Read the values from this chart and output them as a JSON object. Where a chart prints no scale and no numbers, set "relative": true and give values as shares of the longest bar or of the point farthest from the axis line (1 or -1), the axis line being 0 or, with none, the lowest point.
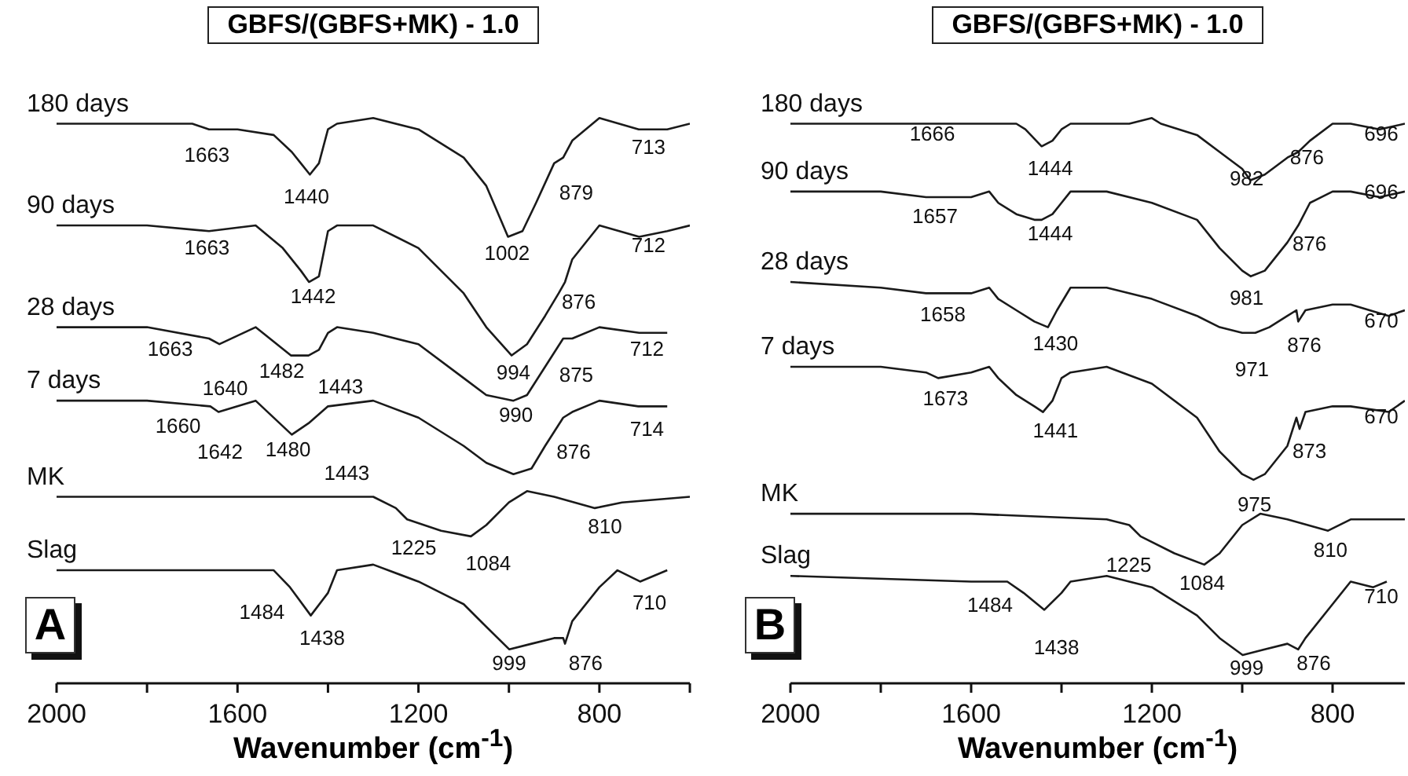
{
  "chart_data": [
    {
      "type": "line",
      "relative": true,
      "title": "GBFS/(GBFS+MK) - 1.0",
      "xlabel": "Wavenumber (cm$^{-1}$)",
      "xlim": [
        2000,
        600
      ],
      "xticks": [
        2000,
        {
          "value": 1800,
          "label": null
        },
        1600,
        {
          "value": 1400,
          "label": null
        },
        1200,
        {
          "value": 1000,
          "label": null
        },
        800,
        {
          "value": 600,
          "label": null
        }
      ],
      "series": [
        {
          "name": "180 days",
          "color": "#1a1a1a",
          "x": [
            2000,
            1800,
            1700,
            1663,
            1600,
            1520,
            1480,
            1460,
            1440,
            1420,
            1400,
            1380,
            1300,
            1200,
            1100,
            1050,
            1002,
            970,
            940,
            900,
            880,
            860,
            800,
            713,
            650,
            600
          ],
          "values": [
            0.99,
            0.99,
            0.99,
            0.98,
            0.98,
            0.97,
            0.94,
            0.92,
            0.9,
            0.92,
            0.98,
            0.99,
            1.0,
            0.98,
            0.93,
            0.88,
            0.79,
            0.8,
            0.85,
            0.92,
            0.93,
            0.96,
            1.0,
            0.98,
            0.98,
            0.99
          ]
        },
        {
          "name": "90 days",
          "color": "#1a1a1a",
          "x": [
            2000,
            1800,
            1663,
            1560,
            1500,
            1460,
            1442,
            1420,
            1400,
            1380,
            1300,
            1200,
            1100,
            1050,
            994,
            960,
            920,
            890,
            876,
            860,
            800,
            712,
            650,
            600
          ],
          "values": [
            0.81,
            0.81,
            0.8,
            0.81,
            0.77,
            0.73,
            0.71,
            0.72,
            0.8,
            0.81,
            0.81,
            0.77,
            0.69,
            0.63,
            0.58,
            0.6,
            0.65,
            0.69,
            0.71,
            0.75,
            0.81,
            0.79,
            0.8,
            0.81
          ]
        },
        {
          "name": "28 days",
          "color": "#1a1a1a",
          "x": [
            2000,
            1800,
            1663,
            1640,
            1560,
            1482,
            1443,
            1420,
            1400,
            1380,
            1300,
            1200,
            1100,
            1050,
            990,
            960,
            920,
            880,
            860,
            800,
            712,
            650
          ],
          "values": [
            0.63,
            0.63,
            0.61,
            0.6,
            0.63,
            0.58,
            0.58,
            0.59,
            0.62,
            0.63,
            0.62,
            0.6,
            0.54,
            0.51,
            0.5,
            0.51,
            0.56,
            0.61,
            0.61,
            0.63,
            0.62,
            0.62
          ]
        },
        {
          "name": "7 days",
          "color": "#1a1a1a",
          "x": [
            2000,
            1800,
            1660,
            1642,
            1560,
            1480,
            1443,
            1400,
            1300,
            1200,
            1100,
            1050,
            990,
            950,
            920,
            880,
            860,
            800,
            714,
            650
          ],
          "values": [
            0.5,
            0.5,
            0.49,
            0.48,
            0.5,
            0.44,
            0.46,
            0.49,
            0.5,
            0.47,
            0.42,
            0.39,
            0.37,
            0.38,
            0.42,
            0.47,
            0.48,
            0.5,
            0.49,
            0.49
          ]
        },
        {
          "name": "MK",
          "color": "#1a1a1a",
          "x": [
            2000,
            1600,
            1300,
            1250,
            1225,
            1150,
            1084,
            1050,
            1000,
            960,
            900,
            810,
            750,
            600
          ],
          "values": [
            0.33,
            0.33,
            0.33,
            0.31,
            0.29,
            0.27,
            0.26,
            0.28,
            0.32,
            0.34,
            0.33,
            0.31,
            0.32,
            0.33
          ]
        },
        {
          "name": "Slag",
          "color": "#1a1a1a",
          "x": [
            2000,
            1600,
            1520,
            1484,
            1438,
            1400,
            1380,
            1300,
            1200,
            1100,
            1050,
            999,
            950,
            900,
            880,
            876,
            860,
            800,
            760,
            710,
            650
          ],
          "values": [
            0.2,
            0.2,
            0.2,
            0.17,
            0.12,
            0.16,
            0.2,
            0.21,
            0.18,
            0.14,
            0.1,
            0.06,
            0.07,
            0.08,
            0.08,
            0.07,
            0.11,
            0.17,
            0.2,
            0.18,
            0.2
          ]
        }
      ],
      "annotations": [
        "A",
        "1663",
        "1440",
        "1002",
        "879",
        "713",
        "1663",
        "1442",
        "994",
        "876",
        "712",
        "1663",
        "1640",
        "1482",
        "1443",
        "875",
        "712",
        "990",
        "1660",
        "1642",
        "1480",
        "1443",
        "876",
        "714",
        "1225",
        "1084",
        "810",
        "1484",
        "1438",
        "999",
        "876",
        "710"
      ]
    },
    {
      "type": "line",
      "relative": true,
      "title": "GBFS/(GBFS+MK) - 1.0",
      "xlabel": "Wavenumber (cm$^{-1}$)",
      "xlim": [
        2000,
        640
      ],
      "xticks": [
        2000,
        {
          "value": 1800,
          "label": null
        },
        1600,
        {
          "value": 1400,
          "label": null
        },
        1200,
        {
          "value": 1000,
          "label": null
        },
        800
      ],
      "series": [
        {
          "name": "180 days",
          "color": "#1a1a1a",
          "x": [
            2000,
            1750,
            1666,
            1600,
            1500,
            1480,
            1444,
            1420,
            1400,
            1380,
            1250,
            1200,
            1180,
            1100,
            1050,
            1000,
            982,
            950,
            900,
            876,
            850,
            800,
            760,
            696,
            640
          ],
          "values": [
            0.99,
            0.99,
            0.99,
            0.99,
            0.99,
            0.98,
            0.95,
            0.96,
            0.98,
            0.99,
            0.99,
            1.0,
            0.99,
            0.97,
            0.94,
            0.91,
            0.89,
            0.9,
            0.93,
            0.94,
            0.96,
            0.99,
            0.99,
            0.98,
            0.99
          ]
        },
        {
          "name": "90 days",
          "color": "#1a1a1a",
          "x": [
            2000,
            1800,
            1700,
            1657,
            1600,
            1560,
            1540,
            1500,
            1460,
            1444,
            1420,
            1400,
            1380,
            1300,
            1200,
            1100,
            1050,
            1000,
            981,
            950,
            900,
            876,
            850,
            800,
            760,
            696,
            640
          ],
          "values": [
            0.87,
            0.87,
            0.86,
            0.86,
            0.86,
            0.87,
            0.85,
            0.83,
            0.82,
            0.82,
            0.83,
            0.85,
            0.87,
            0.87,
            0.85,
            0.82,
            0.77,
            0.73,
            0.72,
            0.73,
            0.78,
            0.81,
            0.85,
            0.87,
            0.87,
            0.86,
            0.87
          ]
        },
        {
          "name": "28 days",
          "color": "#1a1a1a",
          "x": [
            2000,
            1800,
            1700,
            1658,
            1600,
            1560,
            1540,
            1500,
            1460,
            1430,
            1410,
            1380,
            1350,
            1300,
            1200,
            1100,
            1050,
            1000,
            971,
            940,
            900,
            880,
            876,
            860,
            800,
            760,
            676,
            640
          ],
          "values": [
            0.71,
            0.7,
            0.69,
            0.69,
            0.69,
            0.7,
            0.68,
            0.66,
            0.64,
            0.63,
            0.66,
            0.7,
            0.7,
            0.7,
            0.68,
            0.65,
            0.63,
            0.62,
            0.62,
            0.63,
            0.65,
            0.66,
            0.64,
            0.66,
            0.67,
            0.67,
            0.65,
            0.66
          ]
        },
        {
          "name": "7 days",
          "color": "#1a1a1a",
          "x": [
            2000,
            1800,
            1700,
            1673,
            1600,
            1560,
            1540,
            1500,
            1460,
            1441,
            1420,
            1400,
            1380,
            1300,
            1200,
            1100,
            1050,
            1000,
            975,
            950,
            900,
            880,
            873,
            860,
            800,
            760,
            676,
            640
          ],
          "values": [
            0.56,
            0.56,
            0.55,
            0.54,
            0.55,
            0.56,
            0.54,
            0.51,
            0.49,
            0.48,
            0.5,
            0.54,
            0.55,
            0.56,
            0.53,
            0.47,
            0.41,
            0.37,
            0.36,
            0.37,
            0.42,
            0.47,
            0.45,
            0.48,
            0.49,
            0.49,
            0.48,
            0.5
          ]
        },
        {
          "name": "MK",
          "color": "#1a1a1a",
          "x": [
            2000,
            1600,
            1300,
            1250,
            1225,
            1150,
            1084,
            1050,
            1000,
            960,
            900,
            810,
            760,
            640
          ],
          "values": [
            0.3,
            0.3,
            0.29,
            0.28,
            0.26,
            0.23,
            0.21,
            0.23,
            0.28,
            0.3,
            0.29,
            0.27,
            0.29,
            0.29
          ]
        },
        {
          "name": "Slag",
          "color": "#1a1a1a",
          "x": [
            2000,
            1600,
            1520,
            1484,
            1438,
            1400,
            1380,
            1300,
            1200,
            1100,
            1050,
            999,
            950,
            900,
            876,
            860,
            800,
            760,
            710,
            680
          ],
          "values": [
            0.19,
            0.18,
            0.18,
            0.16,
            0.13,
            0.16,
            0.18,
            0.19,
            0.17,
            0.12,
            0.08,
            0.05,
            0.06,
            0.07,
            0.06,
            0.08,
            0.14,
            0.18,
            0.17,
            0.18
          ]
        }
      ],
      "annotations": [
        "B",
        "1666",
        "1444",
        "982",
        "876",
        "696",
        "1657",
        "1444",
        "981",
        "876",
        "696",
        "1658",
        "1430",
        "971",
        "876",
        "670",
        "1673",
        "1441",
        "975",
        "873",
        "670",
        "1225",
        "1084",
        "810",
        "1484",
        "1438",
        "999",
        "876",
        "710"
      ]
    }
  ]
}
